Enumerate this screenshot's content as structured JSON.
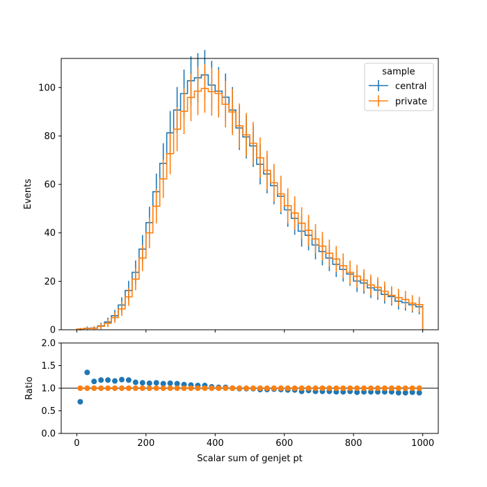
{
  "chart_data": [
    {
      "type": "step",
      "panel": "main",
      "title": "",
      "xlabel": "",
      "ylabel": "Events",
      "xlim": [
        -45,
        1045
      ],
      "ylim": [
        0,
        112
      ],
      "xticks": [
        0,
        200,
        400,
        600,
        800,
        1000
      ],
      "yticks": [
        0,
        20,
        40,
        60,
        80,
        100
      ],
      "bin_edges": [
        0,
        20,
        40,
        60,
        80,
        100,
        120,
        140,
        160,
        180,
        200,
        220,
        240,
        260,
        280,
        300,
        320,
        340,
        360,
        380,
        400,
        420,
        440,
        460,
        480,
        500,
        520,
        540,
        560,
        580,
        600,
        620,
        640,
        660,
        680,
        700,
        720,
        740,
        760,
        780,
        800,
        820,
        840,
        860,
        880,
        900,
        920,
        940,
        960,
        980,
        1000
      ],
      "legend": {
        "title": "sample",
        "placement": "top-right"
      },
      "series": [
        {
          "name": "central",
          "color": "#1f77b4",
          "values": [
            0.2,
            0.6,
            0.7,
            1.6,
            3.2,
            5.8,
            10.2,
            16.2,
            23.7,
            33.3,
            44.2,
            57.0,
            68.7,
            81.3,
            90.7,
            97.5,
            102.8,
            104.0,
            105.2,
            101.0,
            98.5,
            96.0,
            90.7,
            83.3,
            79.6,
            75.9,
            68.3,
            64.3,
            59.5,
            55.1,
            49.5,
            46.0,
            40.7,
            39.0,
            35.0,
            32.3,
            29.6,
            27.0,
            24.9,
            23.0,
            20.1,
            19.3,
            17.3,
            16.4,
            14.6,
            13.7,
            11.8,
            11.2,
            10.3,
            9.5
          ],
          "errors": [
            0.5,
            0.8,
            0.8,
            1.3,
            1.8,
            2.4,
            3.2,
            4.0,
            4.9,
            5.8,
            6.6,
            7.5,
            8.3,
            9.0,
            9.5,
            9.9,
            10.1,
            10.2,
            10.3,
            10.0,
            9.9,
            9.8,
            9.5,
            9.1,
            8.9,
            8.7,
            8.3,
            8.0,
            7.7,
            7.4,
            7.0,
            6.8,
            6.4,
            6.2,
            5.9,
            5.7,
            5.4,
            5.2,
            5.0,
            4.8,
            4.5,
            4.4,
            4.2,
            4.0,
            3.8,
            3.7,
            3.4,
            3.3,
            3.2,
            3.1
          ]
        },
        {
          "name": "private",
          "color": "#ff7f0e",
          "values": [
            0.3,
            0.5,
            0.6,
            1.4,
            2.7,
            5.0,
            8.6,
            13.6,
            20.9,
            29.6,
            40.0,
            51.0,
            62.3,
            72.7,
            82.8,
            90.2,
            95.9,
            98.5,
            99.6,
            98.3,
            97.5,
            93.1,
            89.9,
            84.2,
            80.5,
            77.0,
            71.0,
            65.8,
            60.7,
            56.1,
            51.2,
            48.2,
            44.0,
            41.0,
            37.5,
            34.5,
            31.6,
            29.2,
            26.4,
            23.7,
            22.1,
            20.5,
            18.5,
            17.5,
            15.9,
            14.2,
            13.3,
            12.5,
            11.0,
            10.4
          ],
          "errors": [
            0.5,
            0.7,
            0.8,
            1.2,
            1.6,
            2.2,
            2.9,
            3.7,
            4.6,
            5.4,
            6.3,
            7.1,
            7.9,
            8.5,
            9.1,
            9.5,
            9.8,
            9.9,
            10.0,
            9.9,
            9.9,
            9.6,
            9.5,
            9.2,
            9.0,
            8.8,
            8.4,
            8.1,
            7.8,
            7.5,
            7.2,
            6.9,
            6.6,
            6.4,
            6.1,
            5.9,
            5.6,
            5.4,
            5.1,
            4.9,
            4.7,
            4.5,
            4.3,
            4.2,
            4.0,
            3.8,
            3.6,
            3.5,
            3.3,
            3.2
          ]
        }
      ]
    },
    {
      "type": "scatter",
      "panel": "ratio",
      "title": "",
      "xlabel": "Scalar sum of genjet pt",
      "ylabel": "Ratio",
      "xlim": [
        -45,
        1045
      ],
      "ylim": [
        0,
        2
      ],
      "xticks": [
        0,
        200,
        400,
        600,
        800,
        1000
      ],
      "yticks": [
        0.0,
        0.5,
        1.0,
        1.5,
        2.0
      ],
      "ytick_labels": [
        "0.0",
        "0.5",
        "1.0",
        "1.5",
        "2.0"
      ],
      "reference_line": 1.0,
      "x": [
        10,
        30,
        50,
        70,
        90,
        110,
        130,
        150,
        170,
        190,
        210,
        230,
        250,
        270,
        290,
        310,
        330,
        350,
        370,
        390,
        410,
        430,
        450,
        470,
        490,
        510,
        530,
        550,
        570,
        590,
        610,
        630,
        650,
        670,
        690,
        710,
        730,
        750,
        770,
        790,
        810,
        830,
        850,
        870,
        890,
        910,
        930,
        950,
        970,
        990
      ],
      "series": [
        {
          "name": "central",
          "color": "#1f77b4",
          "values": [
            0.7,
            1.35,
            1.15,
            1.18,
            1.18,
            1.16,
            1.19,
            1.18,
            1.13,
            1.12,
            1.11,
            1.12,
            1.1,
            1.11,
            1.1,
            1.08,
            1.07,
            1.06,
            1.06,
            1.03,
            1.02,
            1.02,
            1.0,
            0.99,
            0.99,
            0.99,
            0.97,
            0.97,
            0.98,
            0.97,
            0.96,
            0.96,
            0.93,
            0.95,
            0.93,
            0.93,
            0.93,
            0.92,
            0.92,
            0.93,
            0.91,
            0.92,
            0.92,
            0.92,
            0.92,
            0.92,
            0.9,
            0.9,
            0.91,
            0.9
          ]
        },
        {
          "name": "private",
          "color": "#ff7f0e",
          "values": [
            1,
            1,
            1,
            1,
            1,
            1,
            1,
            1,
            1,
            1,
            1,
            1,
            1,
            1,
            1,
            1,
            1,
            1,
            1,
            1,
            1,
            1,
            1,
            1,
            1,
            1,
            1,
            1,
            1,
            1,
            1,
            1,
            1,
            1,
            1,
            1,
            1,
            1,
            1,
            1,
            1,
            1,
            1,
            1,
            1,
            1,
            1,
            1,
            1,
            1
          ]
        }
      ]
    }
  ]
}
